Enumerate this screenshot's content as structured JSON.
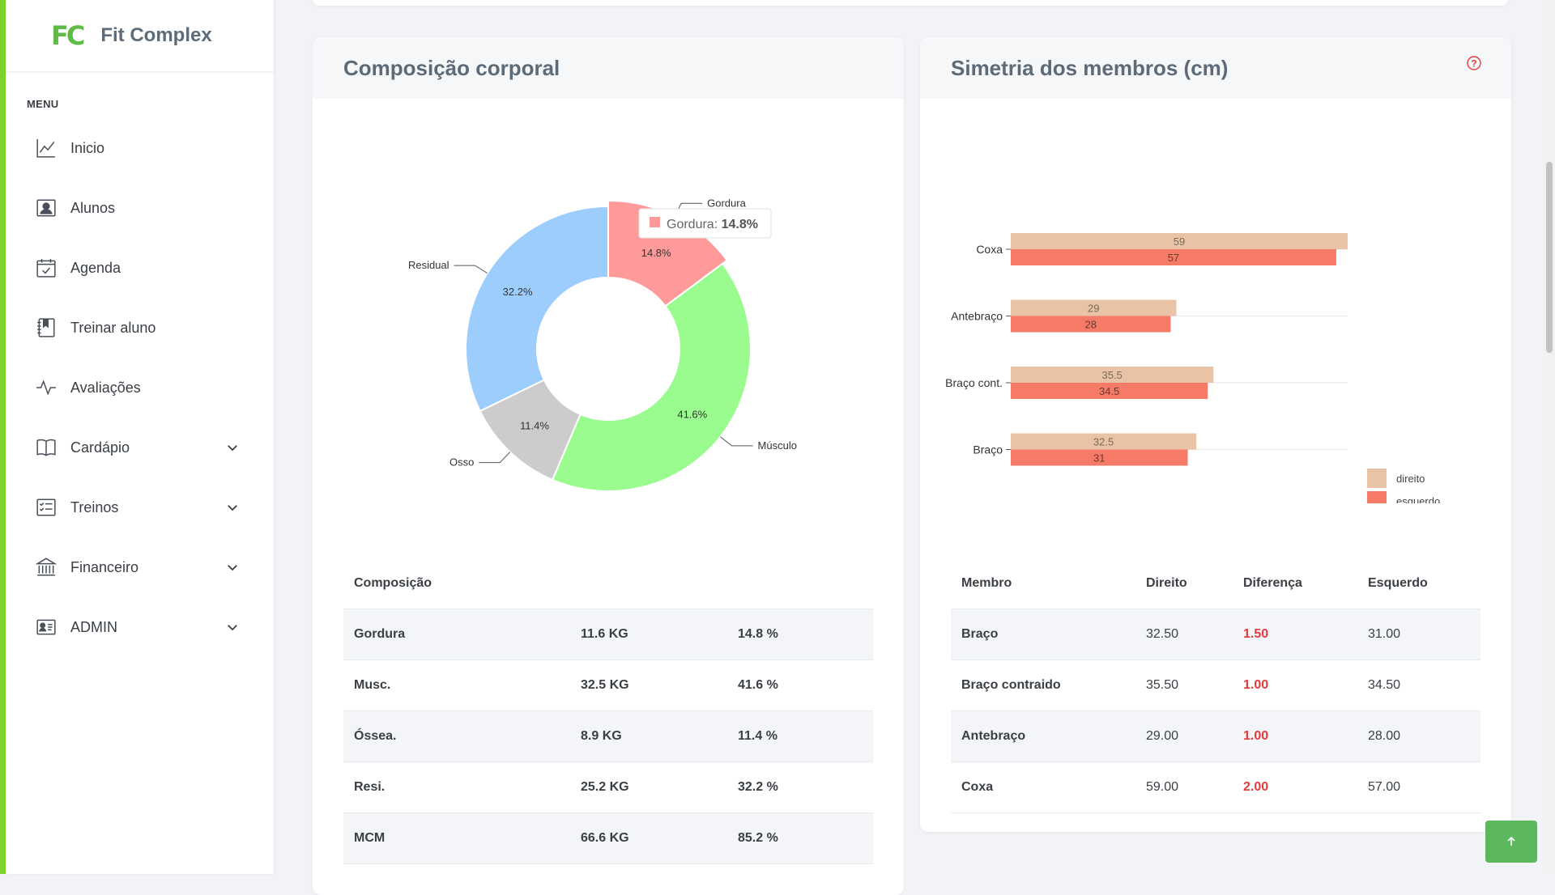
{
  "sidebar": {
    "logo_mark": "FC",
    "logo_text": "Fit Complex",
    "menu_title": "MENU",
    "items": [
      {
        "label": "Inicio",
        "icon": "chart-line-icon",
        "has_chevron": false
      },
      {
        "label": "Alunos",
        "icon": "user-card-icon",
        "has_chevron": false
      },
      {
        "label": "Agenda",
        "icon": "calendar-check-icon",
        "has_chevron": false
      },
      {
        "label": "Treinar aluno",
        "icon": "bookmark-book-icon",
        "has_chevron": false
      },
      {
        "label": "Avaliações",
        "icon": "activity-icon",
        "has_chevron": false
      },
      {
        "label": "Cardápio",
        "icon": "book-open-icon",
        "has_chevron": true
      },
      {
        "label": "Treinos",
        "icon": "checklist-icon",
        "has_chevron": true
      },
      {
        "label": "Financeiro",
        "icon": "bank-icon",
        "has_chevron": true
      },
      {
        "label": "ADMIN",
        "icon": "id-card-icon",
        "has_chevron": true
      }
    ]
  },
  "composition": {
    "title": "Composição corporal",
    "table_header": "Composição",
    "rows": [
      {
        "name": "Gordura",
        "kg": "11.6 KG",
        "pct": "14.8 %"
      },
      {
        "name": "Musc.",
        "kg": "32.5 KG",
        "pct": "41.6 %"
      },
      {
        "name": "Óssea.",
        "kg": "8.9 KG",
        "pct": "11.4 %"
      },
      {
        "name": "Resi.",
        "kg": "25.2 KG",
        "pct": "32.2 %"
      },
      {
        "name": "MCM",
        "kg": "66.6 KG",
        "pct": "85.2 %"
      }
    ],
    "tooltip": {
      "label": "Gordura:",
      "value": "14.8%"
    }
  },
  "symmetry": {
    "title": "Simetria dos membros (cm)",
    "table_headers": [
      "Membro",
      "Direito",
      "Diferença",
      "Esquerdo"
    ],
    "rows": [
      {
        "membro": "Braço",
        "direito": "32.50",
        "diferenca": "1.50",
        "esquerdo": "31.00"
      },
      {
        "membro": "Braço contraido",
        "direito": "35.50",
        "diferenca": "1.00",
        "esquerdo": "34.50"
      },
      {
        "membro": "Antebraço",
        "direito": "29.00",
        "diferenca": "1.00",
        "esquerdo": "28.00"
      },
      {
        "membro": "Coxa",
        "direito": "59.00",
        "diferenca": "2.00",
        "esquerdo": "57.00"
      }
    ]
  },
  "chart_data": [
    {
      "type": "pie",
      "donut": true,
      "categories": [
        "Gordura",
        "Músculo",
        "Osso",
        "Residual"
      ],
      "values": [
        14.8,
        41.6,
        11.4,
        32.2
      ],
      "value_labels": [
        "14.8%",
        "41.6%",
        "11.4%",
        "32.2%"
      ],
      "colors": [
        "#ff9a9a",
        "#9afc8f",
        "#cccccc",
        "#9ccdfd"
      ]
    },
    {
      "type": "bar",
      "orientation": "horizontal",
      "categories": [
        "Coxa",
        "Antebraço",
        "Braço cont.",
        "Braço"
      ],
      "series": [
        {
          "name": "direito",
          "values": [
            59,
            29,
            35.5,
            32.5
          ],
          "color": "#e8c3a5"
        },
        {
          "name": "esquerdo",
          "values": [
            57,
            28,
            34.5,
            31
          ],
          "color": "#f57a67"
        }
      ],
      "legend": "right"
    }
  ],
  "colors": {
    "accent_green": "#7fd12b",
    "diff_red": "#e23c3c",
    "scroll_button": "#5cb85c"
  }
}
